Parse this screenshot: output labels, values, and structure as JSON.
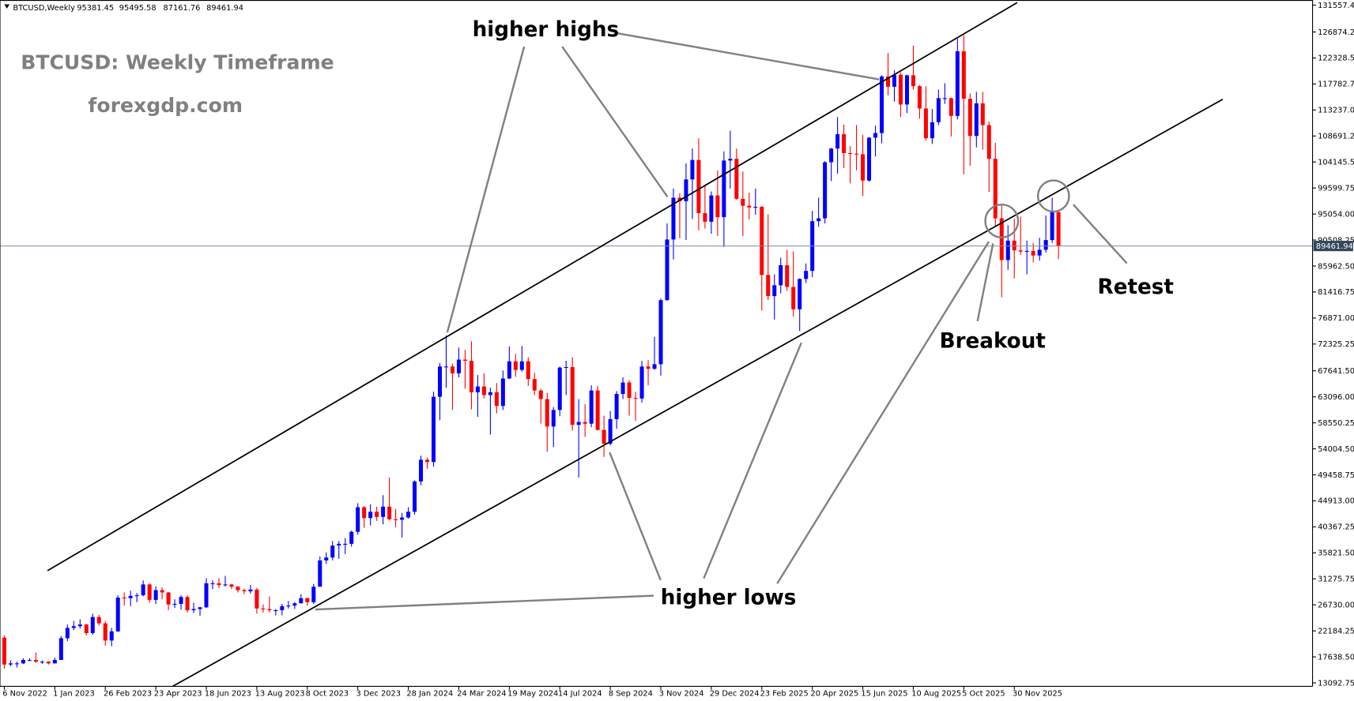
{
  "chart_data": {
    "type": "candlestick",
    "symbol": "BTCUSD,Weekly",
    "title": "BTCUSD: Weekly Timeframe",
    "subtitle": "forexgdp.com",
    "annotations": [
      "higher highs",
      "higher lows",
      "Breakout",
      "Retest"
    ],
    "up_color": "#0000ff",
    "down_color": "#ff0000",
    "price_line": true,
    "price_line_color": "#7d8ea3",
    "ylim": [
      13092.75,
      131557.4
    ],
    "yticks": [
      {
        "value": 13092.75,
        "label": "13092.75"
      },
      {
        "value": 17638.5,
        "label": "17638.50"
      },
      {
        "value": 22184.25,
        "label": "22184.25"
      },
      {
        "value": 26730,
        "label": "26730.00"
      },
      {
        "value": 31275.75,
        "label": "31275.75"
      },
      {
        "value": 35821.5,
        "label": "35821.50"
      },
      {
        "value": 40367.25,
        "label": "40367.25"
      },
      {
        "value": 44913,
        "label": "44913.00"
      },
      {
        "value": 49458.75,
        "label": "49458.75"
      },
      {
        "value": 54004.5,
        "label": "54004.50"
      },
      {
        "value": 58550.25,
        "label": "58550.25"
      },
      {
        "value": 63096,
        "label": "63096.00"
      },
      {
        "value": 67641.5,
        "label": "67641.50"
      },
      {
        "value": 72325.25,
        "label": "72325.25"
      },
      {
        "value": 76871,
        "label": "76871.00"
      },
      {
        "value": 81416.75,
        "label": "81416.75"
      },
      {
        "value": 85962.5,
        "label": "85962.50"
      },
      {
        "value": 90508.25,
        "label": "90508.25"
      },
      {
        "value": 95054,
        "label": "95054.00"
      },
      {
        "value": 99599.75,
        "label": "99599.75"
      },
      {
        "value": 104145.5,
        "label": "104145.50"
      },
      {
        "value": 108691.25,
        "label": "108691.25"
      },
      {
        "value": 113237,
        "label": "113237.00"
      },
      {
        "value": 117782.75,
        "label": "117782.75"
      },
      {
        "value": 122328.5,
        "label": "122328.50"
      },
      {
        "value": 126874.25,
        "label": "126874.25"
      },
      {
        "value": 131557.4,
        "label": "131557.40"
      }
    ],
    "categories": [
      "6 Nov 2022",
      null,
      null,
      null,
      null,
      null,
      null,
      null,
      "1 Jan 2023",
      null,
      null,
      null,
      null,
      null,
      null,
      null,
      "26 Feb 2023",
      null,
      null,
      null,
      null,
      null,
      null,
      null,
      "23 Apr 2023",
      null,
      null,
      null,
      null,
      null,
      null,
      null,
      "18 Jun 2023",
      null,
      null,
      null,
      null,
      null,
      null,
      null,
      "13 Aug 2023",
      null,
      null,
      null,
      null,
      null,
      null,
      null,
      "8 Oct 2023",
      null,
      null,
      null,
      null,
      null,
      null,
      null,
      "3 Dec 2023",
      null,
      null,
      null,
      null,
      null,
      null,
      null,
      "28 Jan 2024",
      null,
      null,
      null,
      null,
      null,
      null,
      null,
      "24 Mar 2024",
      null,
      null,
      null,
      null,
      null,
      null,
      null,
      "19 May 2024",
      null,
      null,
      null,
      null,
      null,
      null,
      null,
      "14 Jul 2024",
      null,
      null,
      null,
      null,
      null,
      null,
      null,
      "8 Sep 2024",
      null,
      null,
      null,
      null,
      null,
      null,
      null,
      "3 Nov 2024",
      null,
      null,
      null,
      null,
      null,
      null,
      null,
      "29 Dec 2024",
      null,
      null,
      null,
      null,
      null,
      null,
      null,
      "23 Feb 2025",
      null,
      null,
      null,
      null,
      null,
      null,
      null,
      "20 Apr 2025",
      null,
      null,
      null,
      null,
      null,
      null,
      null,
      "15 Jun 2025",
      null,
      null,
      null,
      null,
      null,
      null,
      null,
      "10 Aug 2025",
      null,
      null,
      null,
      null,
      null,
      null,
      null,
      "5 Oct 2025",
      null,
      null,
      null,
      null,
      null,
      null,
      null,
      "30 Nov 2025",
      null,
      null,
      null,
      null,
      null,
      null,
      null
    ],
    "open": [
      21000,
      16300,
      16500,
      16500,
      17100,
      17100,
      16800,
      16800,
      16500,
      17100,
      20900,
      22700,
      23000,
      23300,
      21800,
      24600,
      23500,
      20500,
      22100,
      28000,
      27900,
      28300,
      28400,
      30300,
      27600,
      29300,
      28900,
      26800,
      26900,
      28100,
      25800,
      26000,
      26300,
      30500,
      30500,
      30200,
      30300,
      29900,
      29300,
      29100,
      29400,
      26100,
      26000,
      25800,
      25800,
      26500,
      26600,
      27000,
      27900,
      27200,
      29900,
      34500,
      35000,
      37100,
      37400,
      37400,
      39500,
      43800,
      41900,
      43000,
      42100,
      43900,
      41700,
      41600,
      42000,
      43000,
      48300,
      52100,
      51700,
      63100,
      68400,
      68400,
      67200,
      69600,
      69400,
      63900,
      64900,
      63400,
      63900,
      61500,
      66300,
      69300,
      67800,
      69300,
      66200,
      64200,
      62700,
      57900,
      60800,
      68200,
      68300,
      58200,
      58700,
      58400,
      64200,
      57300,
      54900,
      59200,
      63600,
      65600,
      62900,
      62800,
      68400,
      68000,
      68800,
      80000,
      90600,
      97900,
      97300,
      101100,
      104500,
      95200,
      93700,
      98300,
      94500,
      104400,
      104700,
      97700,
      96500,
      96200,
      96300,
      84400,
      80700,
      82600,
      86100,
      82300,
      78400,
      83700,
      85100,
      93800,
      94300,
      104100,
      106500,
      109000,
      105700,
      105600,
      105500,
      100900,
      108400,
      109200,
      119100,
      117300,
      119400,
      114200,
      119300,
      117400,
      113500,
      108300,
      111100,
      115300,
      115300,
      112200,
      123500,
      115200,
      108700,
      114400,
      110600,
      104700,
      94300,
      87000,
      90400,
      88700,
      88500,
      88600,
      87800,
      88800,
      90500,
      95381.45
    ],
    "high": [
      21400,
      17000,
      16800,
      17400,
      17400,
      18400,
      17000,
      16900,
      17500,
      21300,
      23300,
      23900,
      24200,
      23400,
      25200,
      25000,
      23900,
      22700,
      28400,
      28900,
      29200,
      28800,
      31000,
      30500,
      30000,
      29800,
      29000,
      27700,
      28400,
      28400,
      27100,
      26400,
      31400,
      31000,
      31400,
      31800,
      30400,
      30000,
      29600,
      30200,
      29700,
      26800,
      28200,
      26000,
      26900,
      27400,
      27200,
      28600,
      28000,
      30400,
      35200,
      35900,
      37900,
      37900,
      38400,
      39700,
      44500,
      44000,
      44300,
      43900,
      45900,
      49000,
      43500,
      42800,
      43800,
      48500,
      52800,
      52500,
      64000,
      69000,
      73800,
      68900,
      71700,
      71300,
      72800,
      66900,
      67200,
      64700,
      65500,
      67700,
      71900,
      70600,
      72000,
      70000,
      67300,
      64500,
      63800,
      61300,
      68400,
      69400,
      70000,
      62700,
      61800,
      65100,
      65000,
      59800,
      60600,
      64100,
      66500,
      66000,
      64000,
      69400,
      69500,
      73600,
      80300,
      93400,
      99500,
      98700,
      103900,
      106500,
      108300,
      99900,
      99000,
      102700,
      106000,
      109600,
      106500,
      102500,
      98800,
      99500,
      96500,
      95000,
      84500,
      87400,
      88800,
      88500,
      83800,
      86400,
      95600,
      97900,
      104300,
      106600,
      112000,
      110700,
      106900,
      110600,
      108900,
      108500,
      110500,
      119300,
      123200,
      120200,
      119800,
      119400,
      124500,
      117600,
      117400,
      113400,
      116800,
      117900,
      115400,
      125700,
      126300,
      116100,
      116400,
      116400,
      111200,
      107500,
      96600,
      93100,
      94200,
      94600,
      90400,
      90000,
      90900,
      94800,
      97900,
      95495.58
    ],
    "low": [
      15600,
      16000,
      15800,
      16400,
      16900,
      16600,
      16400,
      16300,
      16500,
      17100,
      20400,
      22300,
      22600,
      21400,
      21500,
      23100,
      19600,
      19500,
      22000,
      26600,
      26500,
      27200,
      28200,
      27100,
      26900,
      27700,
      25800,
      26200,
      25900,
      25400,
      25300,
      24800,
      26200,
      29500,
      29700,
      29900,
      29500,
      28900,
      28600,
      28700,
      25200,
      25400,
      25400,
      24900,
      24900,
      26100,
      26000,
      27000,
      26600,
      26900,
      29900,
      33900,
      34500,
      34800,
      35600,
      36900,
      39000,
      40200,
      40600,
      41400,
      40800,
      41500,
      40300,
      38500,
      41800,
      42500,
      47600,
      50500,
      50900,
      59000,
      64700,
      60800,
      66500,
      64500,
      60900,
      59600,
      62800,
      56500,
      60200,
      60800,
      66200,
      66600,
      67500,
      65000,
      63400,
      58400,
      53500,
      54300,
      59700,
      63400,
      57200,
      49000,
      56100,
      57800,
      57200,
      52600,
      54600,
      57500,
      62700,
      59800,
      58900,
      62100,
      65100,
      67800,
      66800,
      79900,
      87100,
      90800,
      90500,
      94200,
      92200,
      92500,
      91600,
      91200,
      89300,
      99500,
      97500,
      91200,
      94100,
      94900,
      78200,
      80000,
      76600,
      81200,
      81600,
      77100,
      74600,
      83000,
      84000,
      92800,
      93400,
      100800,
      102100,
      103100,
      100400,
      102700,
      98200,
      100700,
      105100,
      107400,
      115800,
      114700,
      112000,
      112700,
      116800,
      111700,
      107900,
      107300,
      110600,
      114300,
      108600,
      111600,
      102000,
      103500,
      106700,
      106300,
      98900,
      93000,
      80500,
      85300,
      83800,
      87900,
      84500,
      86600,
      86900,
      88300,
      90000,
      87161.76
    ],
    "close": [
      16300,
      16500,
      16500,
      17100,
      17100,
      16800,
      16800,
      16500,
      17100,
      20900,
      22700,
      23000,
      23300,
      21800,
      24600,
      23500,
      20500,
      22100,
      28000,
      27900,
      28300,
      28400,
      30300,
      27600,
      29300,
      28900,
      26800,
      26900,
      28100,
      25800,
      26000,
      26300,
      30500,
      30500,
      30200,
      30300,
      29900,
      29300,
      29100,
      29400,
      26100,
      26000,
      25800,
      25800,
      26500,
      26600,
      27000,
      27900,
      27200,
      29900,
      34500,
      35000,
      37100,
      37400,
      37400,
      39500,
      43800,
      41900,
      43000,
      42100,
      43900,
      41700,
      41600,
      42000,
      43000,
      48300,
      52100,
      51700,
      63100,
      68400,
      68400,
      67200,
      69600,
      69400,
      63900,
      64900,
      63400,
      63900,
      61500,
      66300,
      69300,
      67800,
      69300,
      66200,
      64200,
      62700,
      57900,
      60800,
      68200,
      68300,
      58200,
      58700,
      58400,
      64200,
      57300,
      54900,
      59200,
      63600,
      65600,
      62900,
      62800,
      68400,
      68000,
      68800,
      80000,
      90600,
      97900,
      97300,
      101100,
      104500,
      95200,
      93700,
      98300,
      94500,
      104400,
      104700,
      97700,
      96500,
      96200,
      96300,
      84400,
      80700,
      82600,
      86100,
      82300,
      78400,
      83700,
      85100,
      93800,
      94300,
      104100,
      106500,
      109000,
      105700,
      105600,
      105500,
      100900,
      108400,
      109200,
      119100,
      117300,
      119400,
      114200,
      119300,
      117400,
      113500,
      108300,
      111100,
      115300,
      115300,
      112200,
      123500,
      115200,
      108700,
      114400,
      110600,
      104700,
      94300,
      87000,
      90400,
      88700,
      88500,
      88600,
      87800,
      88800,
      90500,
      95400,
      89461.94
    ]
  }
}
